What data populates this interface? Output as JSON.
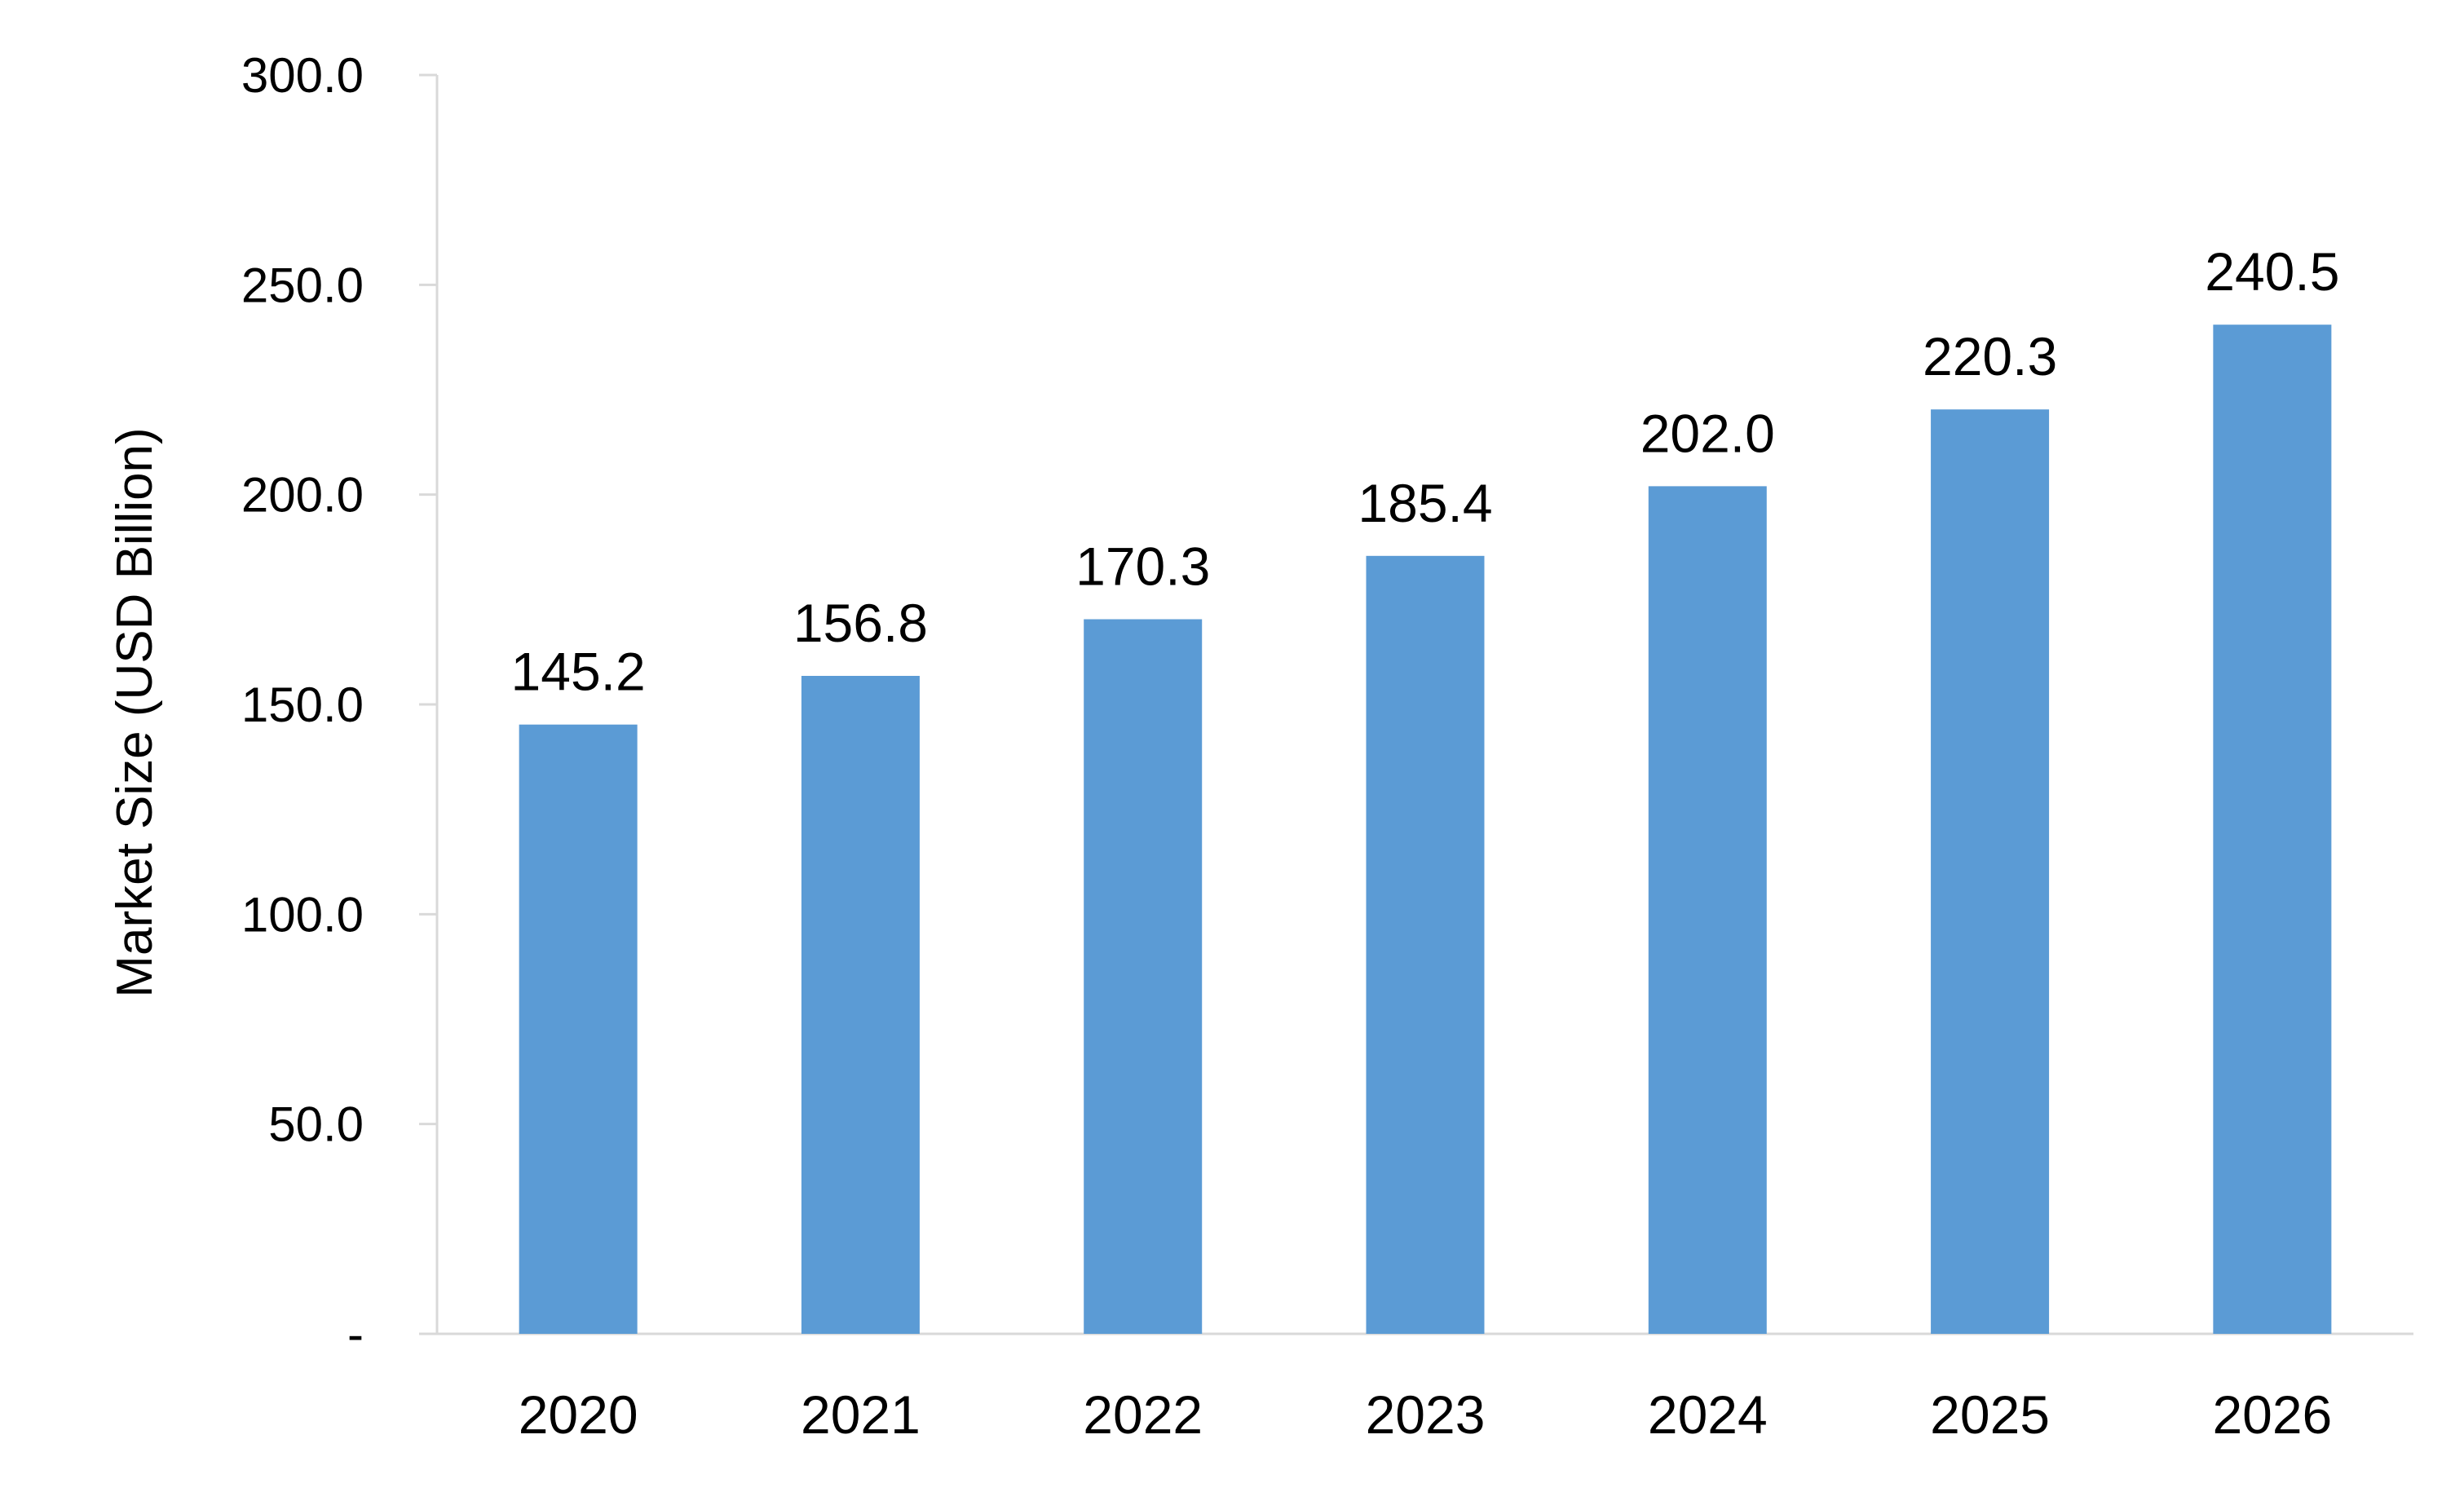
{
  "chart_data": {
    "type": "bar",
    "title": "",
    "xlabel": "",
    "ylabel": "Market Size (USD Billion)",
    "categories": [
      "2020",
      "2021",
      "2022",
      "2023",
      "2024",
      "2025",
      "2026"
    ],
    "values": [
      145.2,
      156.8,
      170.3,
      185.4,
      202.0,
      220.3,
      240.5
    ],
    "data_labels": [
      "145.2",
      "156.8",
      "170.3",
      "185.4",
      "202.0",
      "220.3",
      "240.5"
    ],
    "ylim": [
      0,
      300
    ],
    "y_ticks": [
      {
        "value": 0,
        "label": "-"
      },
      {
        "value": 50,
        "label": "50.0"
      },
      {
        "value": 100,
        "label": "100.0"
      },
      {
        "value": 150,
        "label": "150.0"
      },
      {
        "value": 200,
        "label": "200.0"
      },
      {
        "value": 250,
        "label": "250.0"
      },
      {
        "value": 300,
        "label": "300.0"
      }
    ],
    "grid": false,
    "legend": "none",
    "bar_color": "#5B9BD5",
    "axis_color": "#D9D9D9"
  }
}
